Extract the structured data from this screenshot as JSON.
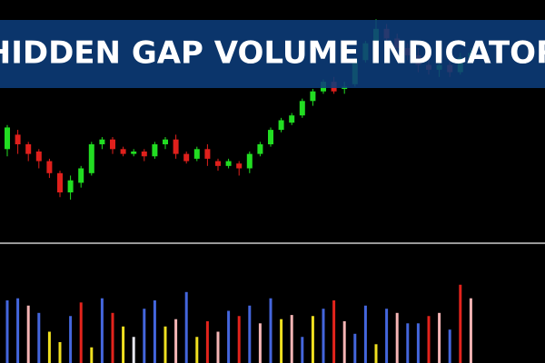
{
  "chart_data": [
    {
      "type": "candlestick",
      "title": "HIDDEN GAP VOLUME INDICATOR",
      "open": [
        38,
        44,
        40,
        37,
        33,
        28,
        20,
        24,
        28,
        40,
        42,
        38,
        36,
        37,
        35,
        40,
        42,
        36,
        34,
        38,
        33,
        31,
        32,
        30,
        36,
        40,
        46,
        49,
        52,
        58,
        62,
        66,
        63,
        65,
        75,
        82,
        88,
        84,
        80,
        77,
        73,
        71,
        73,
        70,
        76
      ],
      "close": [
        47,
        40,
        36,
        33,
        28,
        20,
        25,
        30,
        40,
        42,
        38,
        36,
        37,
        35,
        40,
        42,
        36,
        33,
        38,
        34,
        31,
        33,
        30,
        36,
        40,
        46,
        50,
        52,
        58,
        62,
        66,
        62,
        64,
        75,
        82,
        88,
        84,
        80,
        77,
        73,
        71,
        73,
        70,
        76,
        78
      ],
      "high": [
        48,
        46,
        41,
        38,
        34,
        29,
        27,
        31,
        41,
        43,
        43,
        39,
        38,
        38,
        41,
        43,
        44,
        37,
        39,
        40,
        34,
        34,
        33,
        37,
        41,
        47,
        51,
        53,
        59,
        63,
        67,
        68,
        66,
        76,
        83,
        92,
        90,
        86,
        82,
        80,
        75,
        74,
        75,
        78,
        80
      ],
      "low": [
        35,
        36,
        33,
        30,
        26,
        18,
        17,
        22,
        27,
        38,
        36,
        35,
        35,
        33,
        34,
        38,
        34,
        32,
        33,
        31,
        29,
        30,
        27,
        28,
        35,
        39,
        45,
        48,
        51,
        56,
        61,
        61,
        61,
        64,
        74,
        80,
        82,
        78,
        75,
        70,
        69,
        68,
        68,
        69,
        74
      ],
      "up_color": "#22dd22",
      "down_color": "#e0201c",
      "ylim": [
        0,
        100
      ]
    },
    {
      "type": "bar",
      "values": [
        60,
        62,
        55,
        48,
        30,
        20,
        45,
        58,
        15,
        62,
        48,
        35,
        25,
        52,
        60,
        35,
        42,
        68,
        25,
        40,
        30,
        50,
        45,
        55,
        38,
        62,
        42,
        46,
        25,
        45,
        52,
        60,
        40,
        28,
        55,
        18,
        52,
        48,
        38,
        38,
        45,
        48,
        32,
        75,
        62
      ],
      "colors": [
        "#4466dd",
        "#4466dd",
        "#f5b5b5",
        "#4466dd",
        "#f0e020",
        "#f0e020",
        "#4466dd",
        "#e3231c",
        "#f0e020",
        "#4466dd",
        "#e3231c",
        "#f0e020",
        "#e8e8f0",
        "#4466dd",
        "#4466dd",
        "#f0e020",
        "#f5b5b5",
        "#4466dd",
        "#f0e020",
        "#e3231c",
        "#f5b5b5",
        "#4466dd",
        "#e3231c",
        "#4466dd",
        "#f5b5b5",
        "#4466dd",
        "#f0e020",
        "#f5b5b5",
        "#4466dd",
        "#f0e020",
        "#4466dd",
        "#e3231c",
        "#f5b5b5",
        "#4466dd",
        "#4466dd",
        "#f0e020",
        "#4466dd",
        "#f5b5b5",
        "#4466dd",
        "#4466dd",
        "#e3231c",
        "#f5b5b5",
        "#4466dd",
        "#e3231c",
        "#f5b5b5"
      ],
      "ylim": [
        0,
        100
      ]
    }
  ]
}
